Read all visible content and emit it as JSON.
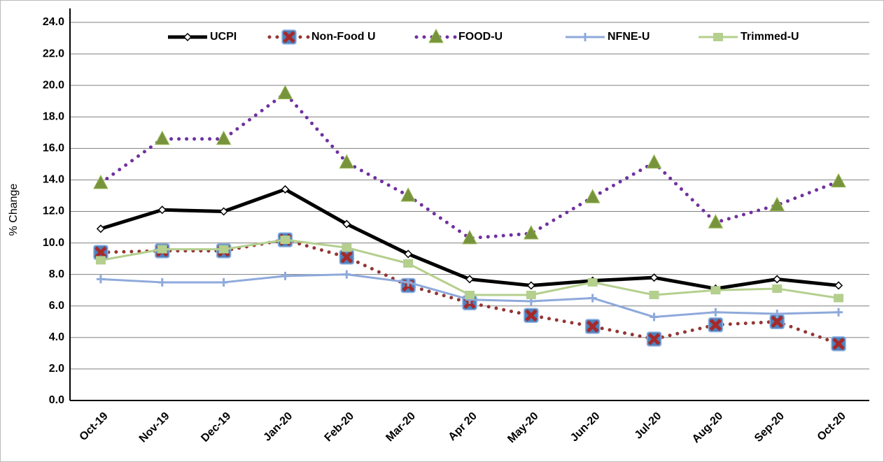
{
  "chart_data": {
    "type": "line",
    "y_label": "% Change",
    "categories": [
      "Oct-19",
      "Nov-19",
      "Dec-19",
      "Jan-20",
      "Feb-20",
      "Mar-20",
      "Apr 20",
      "May-20",
      "Jun-20",
      "Jul-20",
      "Aug-20",
      "Sep-20",
      "Oct-20"
    ],
    "ylim": [
      0,
      24
    ],
    "yticks": [
      {
        "value": 0,
        "label": "0.0"
      },
      {
        "value": 2,
        "label": "2.0"
      },
      {
        "value": 4,
        "label": "4.0"
      },
      {
        "value": 6,
        "label": "6.0"
      },
      {
        "value": 8,
        "label": "8.0"
      },
      {
        "value": 10,
        "label": "10.0"
      },
      {
        "value": 12,
        "label": "12.0"
      },
      {
        "value": 14,
        "label": "14.0"
      },
      {
        "value": 16,
        "label": "16.0"
      },
      {
        "value": 18,
        "label": "18.0"
      },
      {
        "value": 20,
        "label": "20.0"
      },
      {
        "value": 22,
        "label": "22.0"
      },
      {
        "value": 24,
        "label": "24.0"
      }
    ],
    "grid": true,
    "legend": "top",
    "series": [
      {
        "name": "UCPI",
        "color": "#000000",
        "marker": "diamond",
        "dashed": false,
        "values": [
          10.9,
          12.1,
          12.0,
          13.4,
          11.2,
          9.3,
          7.7,
          7.3,
          7.6,
          7.8,
          7.1,
          7.7,
          7.3
        ]
      },
      {
        "name": "Non-Food U",
        "color": "#943634",
        "marker": "square-x",
        "dashed": true,
        "values": [
          9.4,
          9.5,
          9.5,
          10.2,
          9.1,
          7.3,
          6.2,
          5.4,
          4.7,
          3.9,
          4.8,
          5.0,
          3.6
        ]
      },
      {
        "name": "FOOD-U",
        "color": "#7030a0",
        "marker": "triangle",
        "dashed": true,
        "values": [
          13.8,
          16.6,
          16.6,
          19.5,
          15.1,
          13.0,
          10.3,
          10.6,
          12.9,
          15.1,
          11.3,
          12.4,
          13.9
        ]
      },
      {
        "name": "NFNE-U",
        "color": "#8ea9db",
        "marker": "plus",
        "dashed": false,
        "values": [
          7.7,
          7.5,
          7.5,
          7.9,
          8.0,
          7.5,
          6.4,
          6.3,
          6.5,
          5.3,
          5.6,
          5.5,
          5.6
        ]
      },
      {
        "name": "Trimmed-U",
        "color": "#b4cf8e",
        "marker": "square",
        "dashed": false,
        "values": [
          8.9,
          9.6,
          9.6,
          10.2,
          9.7,
          8.7,
          6.7,
          6.7,
          7.5,
          6.7,
          7.0,
          7.1,
          6.5
        ]
      }
    ]
  }
}
